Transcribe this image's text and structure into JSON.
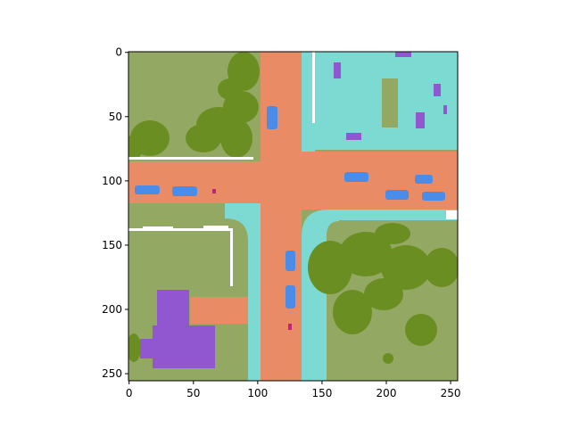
{
  "image": {
    "width": 256,
    "height": 256,
    "description_colors": {
      "grass": "#93a862",
      "tree": "#6b8e23",
      "road": "#e98b64",
      "sidewalk": "#7ddad3",
      "building": "#9057d1",
      "vehicle": "#4a8ce8",
      "marking": "#ffffff",
      "pedestrian": "#c0247a"
    }
  },
  "axes": {
    "x_ticks": [
      0,
      50,
      100,
      150,
      200,
      250
    ],
    "y_ticks": [
      0,
      50,
      100,
      150,
      200,
      250
    ],
    "x_tick_labels": [
      "0",
      "50",
      "100",
      "150",
      "200",
      "250"
    ],
    "y_tick_labels": [
      "0",
      "50",
      "100",
      "150",
      "200",
      "250"
    ],
    "xlim": [
      0,
      256
    ],
    "ylim": [
      256,
      0
    ]
  }
}
